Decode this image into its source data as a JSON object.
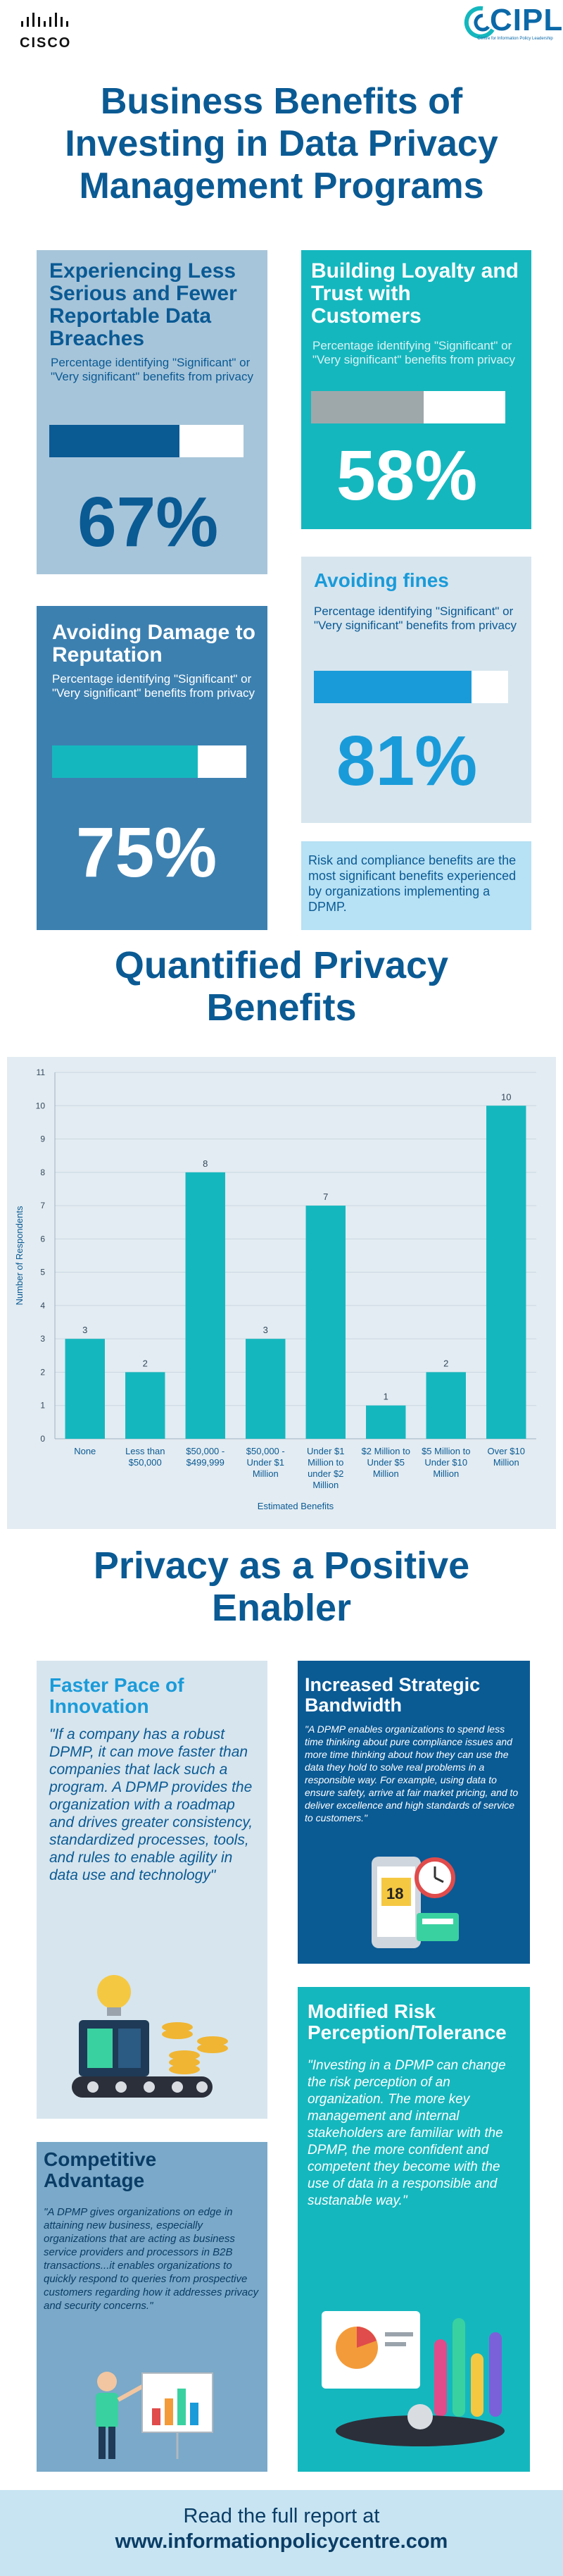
{
  "header": {
    "cisco_logo_text": "CISCO",
    "cipl_logo_text": "CIPL",
    "cipl_subtext": "Centre for Information Policy Leadership"
  },
  "main_title": [
    "Business Benefits of",
    "Investing in Data Privacy",
    "Management Programs"
  ],
  "stat_subtitle": "Percentage identifying \"Significant\" or \"Very significant\" benefits from privacy",
  "stats": [
    {
      "title": "Experiencing Less Serious and Fewer Reportable Data Breaches",
      "percent": 67,
      "label": "67%"
    },
    {
      "title": "Building Loyalty and Trust with Customers",
      "percent": 58,
      "label": "58%"
    },
    {
      "title": "Avoiding fines",
      "percent": 81,
      "label": "81%"
    },
    {
      "title": "Avoiding Damage to Reputation",
      "percent": 75,
      "label": "75%"
    }
  ],
  "risk_note": "Risk and compliance benefits are the most significant benefits experienced by organizations implementing a DPMP.",
  "chart_section_title": [
    "Quantified Privacy",
    "Benefits"
  ],
  "chart_data": {
    "type": "bar",
    "title": "Quantified Privacy Benefits",
    "xlabel": "Estimated Benefits",
    "ylabel": "Number of Respondents",
    "ylim": [
      0,
      11
    ],
    "yticks": [
      0,
      1,
      2,
      3,
      4,
      5,
      6,
      7,
      8,
      9,
      10,
      11
    ],
    "grid": true,
    "categories": [
      [
        "None"
      ],
      [
        "Less than",
        "$50,000"
      ],
      [
        "$50,000 -",
        "$499,999"
      ],
      [
        "$50,000 -",
        "Under $1",
        "Million"
      ],
      [
        "Under $1",
        "Million to",
        "under $2",
        "Million"
      ],
      [
        "$2 Million to",
        "Under $5",
        "Million"
      ],
      [
        "$5 Million to",
        "Under $10",
        "Million"
      ],
      [
        "Over $10",
        "Million"
      ]
    ],
    "values": [
      3,
      2,
      8,
      3,
      7,
      1,
      2,
      10
    ],
    "color": "#15b7be"
  },
  "enabler_section_title": [
    "Privacy as a Positive",
    "Enabler"
  ],
  "enablers": {
    "faster": {
      "title": "Faster Pace of Innovation",
      "quote": "\"If a company has a robust DPMP, it can move faster than companies that lack such a program. A DPMP provides the organization with a roadmap and drives greater consistency, standardized processes, tools, and rules to enable agility in data use and technology\""
    },
    "bandwidth": {
      "title": "Increased Strategic Bandwidth",
      "quote": "\"A DPMP enables organizations to spend less time thinking about pure compliance issues and more time thinking about how they can use the data they hold to solve real problems in a responsible way. For example, using data to ensure safety, arrive at fair market pricing, and to deliver excellence and high standards of service to customers.\""
    },
    "risk": {
      "title": "Modified Risk Perception/Tolerance",
      "quote": "\"Investing in a DPMP can change the risk perception of an organization. The more key management and internal stakeholders are familiar with the DPMP, the more confident and competent they become with the use of data in a responsible and sustanable way.\""
    },
    "competitive": {
      "title": "Competitive Advantage",
      "quote": "\"A DPMP gives organizations on edge in attaining new business, especially organizations that are acting as business service providers and processors in B2B transactions...it enables organizations to quickly respond to queries from prospective customers regarding how it addresses privacy and security concerns.\""
    }
  },
  "footer": {
    "line1": "Read the full report at",
    "line2": "www.informationpolicycentre.com"
  },
  "colors": {
    "navy": "#0a5a94",
    "teal": "#15b7be",
    "sky": "#1a9bd9",
    "steel": "#3c80b0"
  }
}
